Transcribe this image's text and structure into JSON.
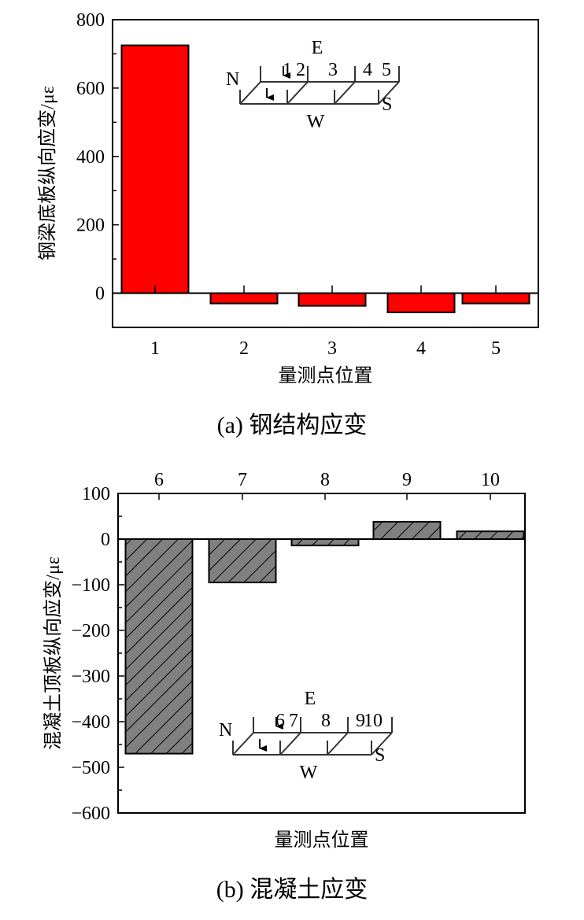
{
  "chart_data": [
    {
      "type": "bar",
      "caption": "(a)  钢结构应变",
      "xlabel": "量测点位置",
      "ylabel": "钢梁底板纵向应变/με",
      "categories": [
        "1",
        "2",
        "3",
        "4",
        "5"
      ],
      "values": [
        725,
        -30,
        -37,
        -56,
        -30
      ],
      "ylim": [
        -100,
        800
      ],
      "yticks": [
        0,
        200,
        400,
        600,
        800
      ],
      "bar_color": "#ff0000",
      "x_axis_position": "bottom",
      "inset": {
        "top": "E",
        "bottom": "W",
        "left": "N",
        "right": "S",
        "points": [
          "1",
          "2",
          "3",
          "4",
          "5"
        ]
      }
    },
    {
      "type": "bar",
      "caption": "(b)  混凝土应变",
      "xlabel": "量测点位置",
      "ylabel": "混凝土顶板纵向应变/με",
      "categories": [
        "6",
        "7",
        "8",
        "9",
        "10"
      ],
      "values": [
        -470,
        -95,
        -14,
        38,
        17
      ],
      "ylim": [
        -600,
        100
      ],
      "yticks": [
        -600,
        -500,
        -400,
        -300,
        -200,
        -100,
        0,
        100
      ],
      "bar_color": "#808080",
      "bar_hatch": "diagonal",
      "x_axis_position": "top",
      "inset": {
        "top": "E",
        "bottom": "W",
        "left": "N",
        "right": "S",
        "points": [
          "6",
          "7",
          "8",
          "9",
          "10"
        ]
      }
    }
  ]
}
